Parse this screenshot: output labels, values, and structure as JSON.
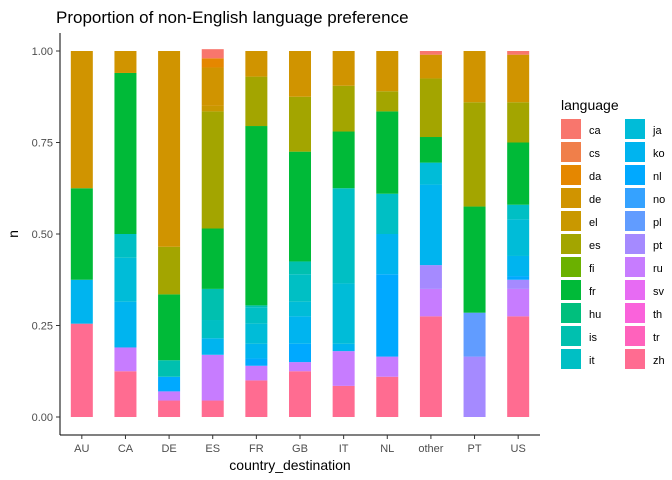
{
  "chart_data": {
    "type": "bar",
    "stacked": true,
    "title": "Proportion of non-English language preference",
    "xlabel": "country_destination",
    "ylabel": "n",
    "ylim": [
      0,
      1
    ],
    "yticks": [
      0,
      0.25,
      0.5,
      0.75,
      1
    ],
    "ytick_labels": [
      "0.00",
      "0.25",
      "0.50",
      "0.75",
      "1.00"
    ],
    "grid": false,
    "legend_position": "right",
    "legend_title": "language",
    "categories": [
      "AU",
      "CA",
      "DE",
      "ES",
      "FR",
      "GB",
      "IT",
      "NL",
      "other",
      "PT",
      "US"
    ],
    "languages": [
      "ca",
      "cs",
      "da",
      "de",
      "el",
      "es",
      "fi",
      "fr",
      "hu",
      "is",
      "it",
      "ja",
      "ko",
      "nl",
      "no",
      "pl",
      "pt",
      "ru",
      "sv",
      "th",
      "tr",
      "zh"
    ],
    "colors": {
      "ca": "#F8766D",
      "cs": "#F07F4A",
      "da": "#E58700",
      "de": "#D09400",
      "el": "#C99800",
      "es": "#A3A500",
      "fi": "#6BB100",
      "fr": "#00BA38",
      "hu": "#00BF7D",
      "is": "#00C0AF",
      "it": "#00BFC4",
      "ja": "#00BCD8",
      "ko": "#00B4EF",
      "nl": "#00A9FF",
      "no": "#35A2FF",
      "pl": "#619CFF",
      "pt": "#A58AFF",
      "ru": "#C77CFF",
      "sv": "#E76BF3",
      "th": "#FA62DB",
      "tr": "#FF62BC",
      "zh": "#FF6C91"
    },
    "series_order_note_free": true,
    "stacks": {
      "AU": {
        "zh": 0.255,
        "tr": 0,
        "ko": 0.12,
        "fr": 0.25,
        "de": 0.375
      },
      "CA": {
        "zh": 0.125,
        "ru": 0.065,
        "ko": 0.125,
        "ja": 0.12,
        "it": 0.065,
        "fr": 0.44,
        "de": 0.06
      },
      "DE": {
        "zh": 0.045,
        "ru": 0.025,
        "nl": 0.04,
        "is": 0.045,
        "fr": 0.18,
        "es": 0.13,
        "de": 0.535
      },
      "ES": {
        "zh": 0.045,
        "ru": 0.125,
        "ko": 0.045,
        "it": 0.05,
        "is": 0.085,
        "fr": 0.165,
        "es": 0.32,
        "el": 0.015,
        "de": 0.105,
        "da": 0.025,
        "ca": 0.025
      },
      "FR": {
        "zh": 0.1,
        "ru": 0.04,
        "nl": 0.02,
        "ko": 0.04,
        "ja": 0.055,
        "it": 0.045,
        "is": 0.005,
        "fr": 0.49,
        "es": 0.135,
        "de": 0.07
      },
      "GB": {
        "zh": 0.125,
        "ru": 0.025,
        "nl": 0.05,
        "ko": 0.075,
        "ja": 0.04,
        "it": 0.075,
        "is": 0.035,
        "fr": 0.3,
        "es": 0.15,
        "de": 0.125
      },
      "IT": {
        "zh": 0.085,
        "ru": 0.095,
        "ko": 0.02,
        "ja": 0.165,
        "it": 0.26,
        "fr": 0.155,
        "es": 0.125,
        "de": 0.095
      },
      "NL": {
        "zh": 0.11,
        "ru": 0.055,
        "nl": 0.225,
        "ko": 0.11,
        "it": 0.11,
        "fr": 0.225,
        "es": 0.055,
        "de": 0.11
      },
      "other": {
        "zh": 0.275,
        "ru": 0.075,
        "pt": 0.065,
        "ko": 0.22,
        "ja": 0.06,
        "fr": 0.07,
        "es": 0.16,
        "de": 0.065,
        "ca": 0.01
      },
      "PT": {
        "pt": 0.165,
        "pl": 0.12,
        "fr": 0.29,
        "es": 0.285,
        "de": 0.14
      },
      "US": {
        "zh": 0.275,
        "ru": 0.075,
        "pt": 0.025,
        "nl": 0.01,
        "ko": 0.055,
        "ja": 0.1,
        "it": 0.04,
        "fr": 0.17,
        "es": 0.11,
        "de": 0.13,
        "ca": 0.01
      }
    }
  }
}
